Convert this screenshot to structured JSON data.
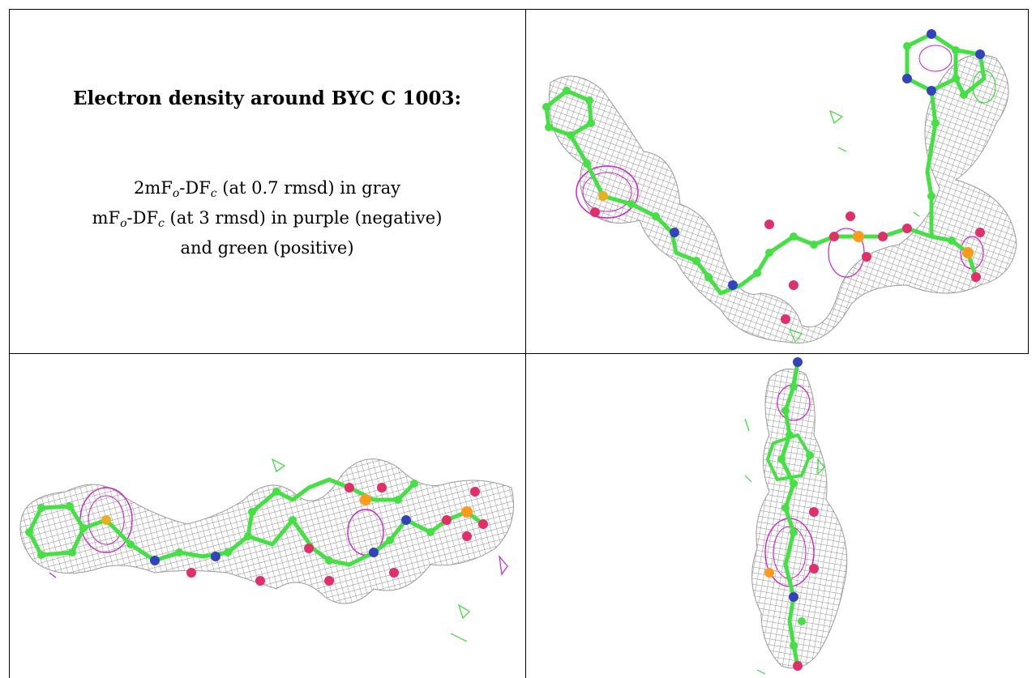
{
  "caption": {
    "title": "Electron density around BYC C 1003:",
    "line1": {
      "pre": "2mF",
      "sub1": "o",
      "mid": "-DF",
      "sub2": "c",
      "post": " (at 0.7 rmsd) in gray"
    },
    "line2": {
      "pre": "mF",
      "sub1": "o",
      "mid": "-DF",
      "sub2": "c",
      "post": " (at 3 rmsd) in purple (negative)"
    },
    "line3": "and green (positive)"
  },
  "colors": {
    "mesh": "#8a8a8a",
    "negative": "#cc22cc",
    "positive": "#33dd33",
    "carbon": "#44e044",
    "nitrogen": "#3344bb",
    "oxygen": "#e0306a",
    "phosphorus": "#ff9a1a",
    "sulfur": "#e8b020"
  },
  "panels": [
    {
      "name": "view-top-right",
      "icon": "electron-density-view-1"
    },
    {
      "name": "view-bottom-left",
      "icon": "electron-density-view-2"
    },
    {
      "name": "view-bottom-right",
      "icon": "electron-density-view-3"
    }
  ]
}
